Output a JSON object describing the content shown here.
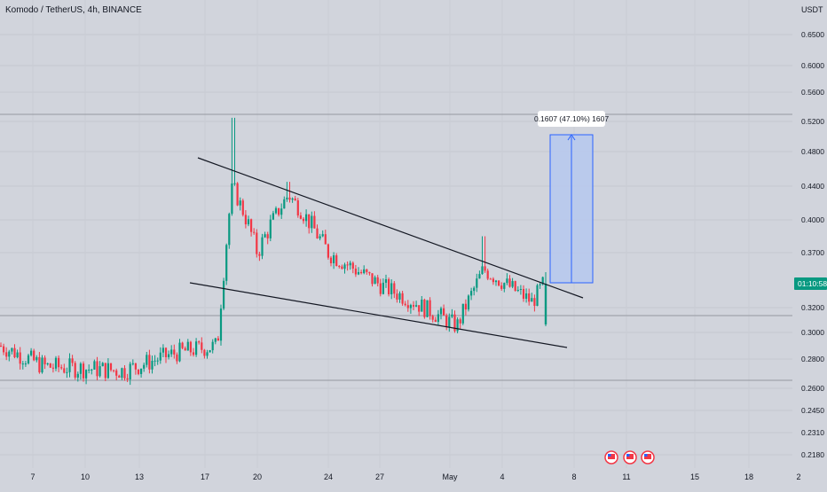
{
  "header": {
    "symbol_line": "Komodo / TetherUS, 4h, BINANCE"
  },
  "price_axis": {
    "unit": "USDT",
    "ticks": [
      "0.6500",
      "0.6000",
      "0.5600",
      "0.5200",
      "0.4800",
      "0.4400",
      "0.4000",
      "0.3700",
      "0.3200",
      "0.3000",
      "0.2800",
      "0.2600",
      "0.2450",
      "0.2310",
      "0.2180"
    ]
  },
  "time_axis": {
    "ticks": [
      "7",
      "10",
      "13",
      "17",
      "20",
      "24",
      "27",
      "May",
      "4",
      "8",
      "11",
      "15",
      "18",
      "2"
    ]
  },
  "current_price": {
    "label": "01:10:58",
    "color": "#089981"
  },
  "measure": {
    "label": "0.1607 (47.10%) 1607"
  },
  "colors": {
    "up": "#089981",
    "down": "#f23645",
    "background": "#d1d4dc",
    "measure_fill": "#b6c8ee",
    "measure_line": "#2962ff"
  },
  "icons": [
    "us-flag-event-icon",
    "us-flag-event-icon",
    "us-flag-event-icon"
  ],
  "chart_data": {
    "type": "candlestick",
    "title": "Komodo / TetherUS, 4h, BINANCE",
    "xlabel": "",
    "ylabel": "USDT",
    "y_scale": "log",
    "ylim": [
      0.218,
      0.65
    ],
    "grid": true,
    "ohlc_approx": [
      {
        "t": "Apr 6",
        "close": 0.29
      },
      {
        "t": "Apr 9",
        "close": 0.275
      },
      {
        "t": "Apr 12",
        "close": 0.272
      },
      {
        "t": "Apr 15",
        "close": 0.285
      },
      {
        "t": "Apr 17",
        "close": 0.29
      },
      {
        "t": "Apr 18",
        "close": 0.44,
        "high": 0.525
      },
      {
        "t": "Apr 20",
        "close": 0.37
      },
      {
        "t": "Apr 22",
        "close": 0.43,
        "high": 0.445
      },
      {
        "t": "Apr 24",
        "close": 0.37
      },
      {
        "t": "Apr 27",
        "close": 0.34
      },
      {
        "t": "Apr 30",
        "close": 0.305
      },
      {
        "t": "May 2",
        "close": 0.355,
        "high": 0.385
      },
      {
        "t": "May 5",
        "close": 0.325
      },
      {
        "t": "May 6",
        "close": 0.345
      }
    ],
    "trendlines": [
      "descending upper trendline",
      "descending lower trendline"
    ]
  }
}
